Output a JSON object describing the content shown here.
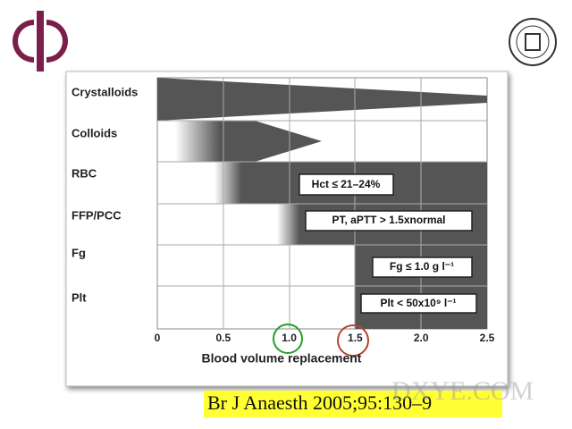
{
  "rows": [
    "Crystalloids",
    "Colloids",
    "RBC",
    "FFP/PCC",
    "Fg",
    "Plt"
  ],
  "notes": [
    "Hct ≤ 21–24%",
    "PT, aPTT > 1.5xnormal",
    "Fg ≤ 1.0 g l⁻¹",
    "Plt < 50x10⁹ l⁻¹"
  ],
  "x_axis": {
    "ticks": [
      "0",
      "0.5",
      "1.0",
      "1.5",
      "2.0",
      "2.5"
    ],
    "label": "Blood volume replacement"
  },
  "citation": "Br J Anaesth 2005;95:130–9",
  "watermark": "DXYE.COM"
}
